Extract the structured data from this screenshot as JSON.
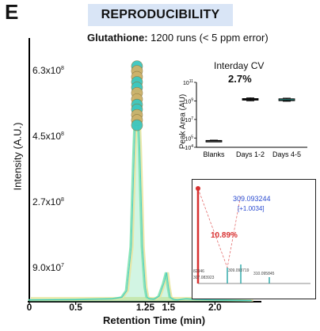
{
  "panel_letter": "E",
  "header": {
    "title": "REPRODUCIBILITY",
    "subtitle_bold": "Glutathione:",
    "subtitle_rest": "1200 runs (< 5 ppm error)"
  },
  "colors": {
    "title_box": "#d9e5f6",
    "trace_green": "#7fe3b0",
    "trace_yellow": "#e8e6a0",
    "marker_teal": "#3cc7c0",
    "marker_gold": "#cdb26a",
    "box_teal": "#40d0c4",
    "ms_red": "#d83030",
    "ms_blue": "#2a4bd0"
  },
  "chart_data": [
    {
      "type": "line",
      "title": "",
      "xlabel": "Retention Time (min)",
      "ylabel": "Intensity (A.U.)",
      "xlim": [
        0,
        2.5
      ],
      "ylim": [
        0,
        720000000.0
      ],
      "xticks": [
        {
          "value": 0,
          "label": "0"
        },
        {
          "value": 0.5,
          "label": "0.5"
        },
        {
          "value": 1.25,
          "label": "1.25"
        },
        {
          "value": 1.5,
          "label": "1.5"
        },
        {
          "value": 2.0,
          "label": "2.0"
        }
      ],
      "yticks": [
        {
          "value": 90000000.0,
          "mant": "9.0x10",
          "exp": "7"
        },
        {
          "value": 270000000.0,
          "mant": "2.7x10",
          "exp": "8"
        },
        {
          "value": 450000000.0,
          "mant": "4.5x10",
          "exp": "8"
        },
        {
          "value": 630000000.0,
          "mant": "6.3x10",
          "exp": "8"
        }
      ],
      "series": [
        {
          "x": [
            0.0,
            0.5,
            0.9,
            1.0,
            1.05,
            1.1,
            1.13,
            1.16,
            1.19,
            1.22,
            1.25,
            1.27,
            1.3,
            1.35,
            1.4,
            1.45,
            1.48,
            1.5,
            1.52,
            1.56,
            1.6,
            1.7,
            1.8,
            2.0,
            2.2,
            2.4
          ],
          "y": [
            5000000.0,
            6000000.0,
            8000000.0,
            12000000.0,
            30000000.0,
            150000000.0,
            400000000.0,
            620000000.0,
            420000000.0,
            150000000.0,
            40000000.0,
            12000000.0,
            8000000.0,
            7000000.0,
            15000000.0,
            50000000.0,
            80000000.0,
            40000000.0,
            12000000.0,
            6000000.0,
            5000000.0,
            8000000.0,
            6000000.0,
            5000000.0,
            4000000.0,
            3000000.0
          ]
        }
      ],
      "apex_markers": {
        "x": 1.16,
        "values": [
          643000000.0,
          630000000.0,
          614000000.0,
          600000000.0,
          585000000.0,
          570000000.0,
          553000000.0,
          538000000.0,
          525000000.0,
          510000000.0,
          496000000.0,
          482000000.0
        ]
      }
    },
    {
      "type": "box",
      "title": "Interday CV",
      "value_label": "2.7%",
      "ylabel": "Peak Area (AU)",
      "yscale": "log",
      "ylim": [
        10000,
        100000000000.0
      ],
      "yticks": [
        {
          "value": 100000000000.0,
          "mant": "10",
          "exp": "11"
        },
        {
          "value": 1000000000.0,
          "mant": "10",
          "exp": "9"
        },
        {
          "value": 10000000.0,
          "mant": "10",
          "exp": "7"
        },
        {
          "value": 100000.0,
          "mant": "10",
          "exp": "5"
        },
        {
          "value": 10000,
          "mant": "10",
          "exp": "4"
        }
      ],
      "categories": [
        "Blanks",
        "Days 1-2",
        "Days 4-5"
      ],
      "boxes": [
        {
          "min": 40000,
          "q1": 45000,
          "median": 50000,
          "q3": 55000,
          "max": 60000
        },
        {
          "min": 1000000000.0,
          "q1": 1200000000.0,
          "median": 1500000000.0,
          "q3": 1800000000.0,
          "max": 2200000000.0
        },
        {
          "min": 900000000.0,
          "q1": 1050000000.0,
          "median": 1300000000.0,
          "q3": 1700000000.0,
          "max": 2000000000.0
        }
      ]
    },
    {
      "type": "mass_spectrum",
      "main_peak_label": "309.093244",
      "main_peak_shift": "[+1.0034]",
      "ratio_label": "10.89%",
      "minor_labels": [
        "309.093719",
        "310.095845"
      ],
      "left_labels": [
        "82346",
        "307.083923"
      ]
    }
  ]
}
